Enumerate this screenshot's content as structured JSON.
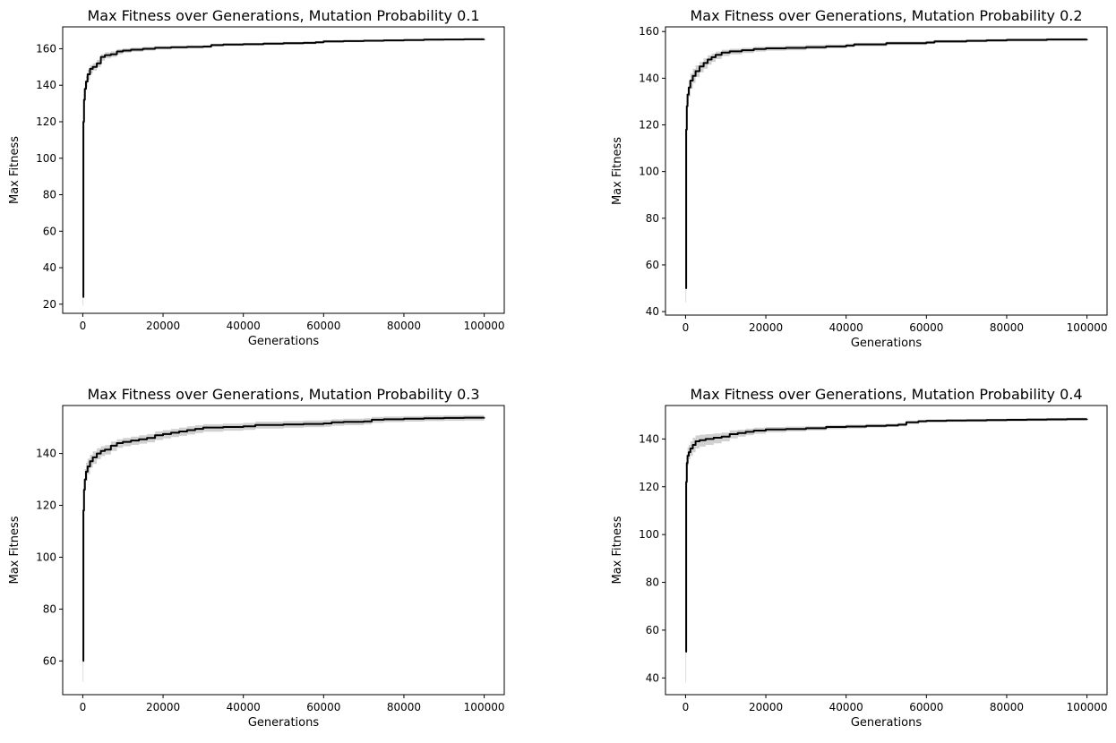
{
  "chart_data": [
    {
      "type": "line",
      "title": "Max Fitness over Generations, Mutation Probability 0.1",
      "xlabel": "Generations",
      "ylabel": "Max Fitness",
      "xlim": [
        -5000,
        105000
      ],
      "ylim": [
        15,
        172
      ],
      "xticks": [
        0,
        20000,
        40000,
        60000,
        80000,
        100000
      ],
      "yticks": [
        20,
        40,
        60,
        80,
        100,
        120,
        140,
        160
      ],
      "grid": false,
      "line_color": "#000000",
      "band_color": "#bdbdbd",
      "series": [
        {
          "x": [
            0,
            150,
            300,
            500,
            800,
            1200,
            1800,
            2500,
            3500,
            4500,
            5500,
            7000,
            8500,
            10000,
            12000,
            15000,
            18000,
            22000,
            26000,
            30000,
            32000,
            35000,
            40000,
            45000,
            50000,
            55000,
            58000,
            60000,
            65000,
            70000,
            75000,
            80000,
            85000,
            90000,
            95000,
            100000
          ],
          "values": [
            24,
            120,
            132,
            138,
            142,
            146,
            149,
            150,
            152,
            155.5,
            156.5,
            157,
            158.5,
            159,
            159.5,
            160,
            160.5,
            160.8,
            161,
            161.2,
            162,
            162.3,
            162.5,
            162.8,
            163,
            163.2,
            163.5,
            164,
            164.2,
            164.4,
            164.6,
            164.8,
            165,
            165.1,
            165.2,
            165.3
          ],
          "lower": [
            19,
            116,
            128,
            134,
            139,
            143,
            146.5,
            148,
            150,
            153.5,
            154.8,
            155.5,
            157,
            157.8,
            158.3,
            159,
            159.6,
            160,
            160.2,
            160.4,
            161.2,
            161.6,
            161.8,
            162.1,
            162.3,
            162.5,
            162.8,
            163.3,
            163.6,
            163.8,
            164,
            164.2,
            164.4,
            164.6,
            164.7,
            164.8
          ],
          "upper": [
            28,
            124,
            135,
            141,
            145,
            148.5,
            151,
            152,
            154,
            157,
            158,
            158.5,
            159.8,
            160.2,
            160.6,
            161,
            161.4,
            161.6,
            161.8,
            162,
            162.8,
            163,
            163.2,
            163.5,
            163.7,
            163.9,
            164.2,
            164.7,
            164.8,
            165,
            165.2,
            165.4,
            165.6,
            165.6,
            165.7,
            165.8
          ]
        }
      ]
    },
    {
      "type": "line",
      "title": "Max Fitness over Generations, Mutation Probability 0.2",
      "xlabel": "Generations",
      "ylabel": "Max Fitness",
      "xlim": [
        -5000,
        105000
      ],
      "ylim": [
        38.5,
        162
      ],
      "xticks": [
        0,
        20000,
        40000,
        60000,
        80000,
        100000
      ],
      "yticks": [
        40,
        60,
        80,
        100,
        120,
        140,
        160
      ],
      "grid": false,
      "line_color": "#000000",
      "band_color": "#bdbdbd",
      "series": [
        {
          "x": [
            0,
            150,
            300,
            500,
            800,
            1200,
            1800,
            2500,
            3500,
            4500,
            5500,
            6500,
            7500,
            9000,
            11000,
            14000,
            17000,
            20000,
            25000,
            30000,
            35000,
            40000,
            42000,
            50000,
            60000,
            62000,
            70000,
            75000,
            80000,
            90000,
            100000
          ],
          "values": [
            50,
            118,
            128,
            133,
            136,
            139,
            141,
            143,
            145,
            146.5,
            148,
            149,
            150,
            151,
            151.5,
            152,
            152.5,
            152.8,
            153,
            153.3,
            153.6,
            154,
            154.5,
            155,
            155.3,
            155.8,
            156,
            156.2,
            156.4,
            156.6,
            156.7
          ],
          "lower": [
            44,
            113,
            124,
            129,
            132,
            135.5,
            138,
            140.5,
            142.5,
            144,
            145.8,
            147,
            148.2,
            149.5,
            150.2,
            150.8,
            151.4,
            151.8,
            152,
            152.4,
            152.8,
            153.2,
            153.7,
            154.2,
            154.6,
            155.1,
            155.4,
            155.6,
            155.8,
            156,
            156.1
          ],
          "upper": [
            55,
            122,
            131,
            136,
            139,
            142,
            144,
            145.5,
            147,
            148.5,
            149.8,
            150.6,
            151.4,
            152.2,
            152.6,
            153,
            153.4,
            153.7,
            153.9,
            154.2,
            154.4,
            154.8,
            155.2,
            155.7,
            156,
            156.4,
            156.6,
            156.8,
            157,
            157.1,
            157.2
          ]
        }
      ]
    },
    {
      "type": "line",
      "title": "Max Fitness over Generations, Mutation Probability 0.3",
      "xlabel": "Generations",
      "ylabel": "Max Fitness",
      "xlim": [
        -5000,
        105000
      ],
      "ylim": [
        47,
        158.5
      ],
      "xticks": [
        0,
        20000,
        40000,
        60000,
        80000,
        100000
      ],
      "yticks": [
        60,
        80,
        100,
        120,
        140
      ],
      "grid": false,
      "line_color": "#000000",
      "band_color": "#bdbdbd",
      "series": [
        {
          "x": [
            0,
            150,
            300,
            500,
            800,
            1200,
            1800,
            2500,
            3500,
            4500,
            5500,
            7000,
            8500,
            10000,
            12000,
            14000,
            16000,
            18000,
            20000,
            22000,
            24000,
            26000,
            28000,
            30000,
            35000,
            40000,
            43000,
            50000,
            55000,
            60000,
            62000,
            65000,
            70000,
            72000,
            75000,
            80000,
            85000,
            90000,
            95000,
            100000
          ],
          "values": [
            60,
            118,
            126,
            130,
            133,
            135,
            137,
            138.5,
            140,
            141,
            141.5,
            143,
            144,
            144.5,
            145,
            145.5,
            146,
            147,
            147.5,
            148,
            148.5,
            149,
            149.5,
            150,
            150.2,
            150.5,
            151,
            151.2,
            151.4,
            151.6,
            152,
            152.2,
            152.4,
            153,
            153.2,
            153.4,
            153.6,
            153.7,
            153.8,
            153.9
          ],
          "lower": [
            52,
            112,
            121,
            126,
            129.5,
            132,
            134.5,
            136,
            137.8,
            139,
            139.6,
            141,
            142.2,
            142.8,
            143.3,
            143.8,
            144.3,
            145.2,
            145.8,
            146.3,
            146.8,
            147.3,
            147.9,
            148.4,
            148.8,
            149.1,
            149.6,
            149.9,
            150.1,
            150.3,
            150.7,
            150.9,
            151.2,
            151.8,
            152.1,
            152.3,
            152.5,
            152.6,
            152.7,
            152.8
          ],
          "upper": [
            66,
            123,
            130,
            134,
            136.5,
            138,
            139.5,
            140.8,
            142,
            142.8,
            143.2,
            144.6,
            145.5,
            146,
            146.5,
            147,
            147.5,
            148.5,
            149,
            149.5,
            150,
            150.5,
            150.9,
            151.3,
            151.5,
            151.8,
            152.3,
            152.5,
            152.7,
            152.9,
            153.2,
            153.4,
            153.6,
            154.1,
            154.3,
            154.4,
            154.6,
            154.7,
            154.8,
            154.9
          ]
        }
      ]
    },
    {
      "type": "line",
      "title": "Max Fitness over Generations, Mutation Probability 0.4",
      "xlabel": "Generations",
      "ylabel": "Max Fitness",
      "xlim": [
        -5000,
        105000
      ],
      "ylim": [
        33,
        154
      ],
      "xticks": [
        0,
        20000,
        40000,
        60000,
        80000,
        100000
      ],
      "yticks": [
        40,
        60,
        80,
        100,
        120,
        140
      ],
      "grid": false,
      "line_color": "#000000",
      "band_color": "#bdbdbd",
      "series": [
        {
          "x": [
            0,
            150,
            300,
            500,
            800,
            1200,
            1800,
            2500,
            3500,
            5000,
            7000,
            9000,
            11000,
            13000,
            15000,
            17000,
            20000,
            25000,
            30000,
            35000,
            40000,
            45000,
            50000,
            53000,
            55000,
            58000,
            60000,
            65000,
            70000,
            75000,
            80000,
            85000,
            90000,
            95000,
            100000
          ],
          "values": [
            51,
            122,
            130,
            133,
            134.5,
            136,
            137.5,
            139,
            139.5,
            140,
            140.5,
            141,
            142,
            142.5,
            143,
            143.5,
            144,
            144.2,
            144.5,
            145,
            145.2,
            145.5,
            145.7,
            146,
            147,
            147.4,
            147.6,
            147.7,
            147.8,
            147.9,
            148,
            148.1,
            148.2,
            148.3,
            148.4
          ],
          "lower": [
            38,
            115,
            125,
            129,
            131.5,
            133,
            134.5,
            136,
            136.8,
            137.5,
            138.2,
            139,
            140.2,
            141,
            141.6,
            142.2,
            142.8,
            143.2,
            143.6,
            144.1,
            144.4,
            144.7,
            145,
            145.3,
            146.3,
            146.8,
            147,
            147.1,
            147.2,
            147.3,
            147.4,
            147.5,
            147.6,
            147.7,
            147.8
          ],
          "upper": [
            58,
            127,
            134,
            136.5,
            137.5,
            139,
            140.5,
            141.5,
            141.8,
            142,
            142.3,
            142.7,
            143.6,
            143.9,
            144.3,
            144.7,
            145,
            145.2,
            145.4,
            145.8,
            146,
            146.2,
            146.4,
            146.7,
            147.6,
            148,
            148.2,
            148.3,
            148.4,
            148.5,
            148.6,
            148.7,
            148.8,
            148.9,
            149
          ]
        }
      ]
    }
  ]
}
